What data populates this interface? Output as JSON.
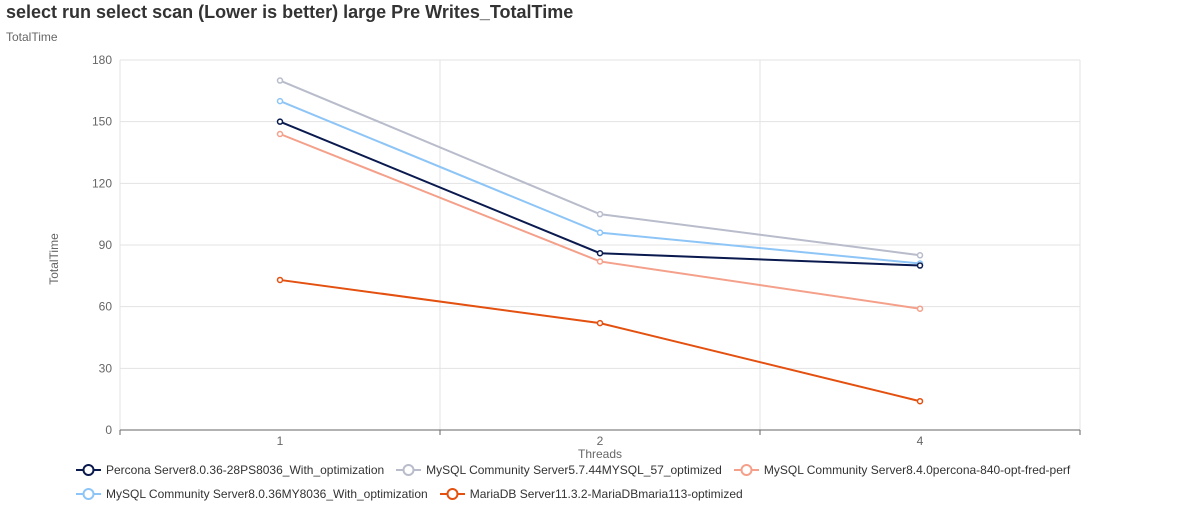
{
  "chart_data": {
    "type": "line",
    "title": "select run select scan (Lower is better)  large Pre Writes_TotalTime",
    "subtitle": "TotalTime",
    "xlabel": "Threads",
    "ylabel": "TotalTime",
    "categories": [
      "1",
      "2",
      "4"
    ],
    "ylim": [
      0,
      180
    ],
    "yticks": [
      0,
      30,
      60,
      90,
      120,
      150,
      180
    ],
    "grid": true,
    "legend_position": "bottom",
    "series": [
      {
        "name": "Percona Server8.0.36-28PS8036_With_optimization",
        "color": "#0a1a4e",
        "values": [
          150,
          86,
          80
        ]
      },
      {
        "name": "MySQL Community Server5.7.44MYSQL_57_optimized",
        "color": "#b8bccb",
        "values": [
          170,
          105,
          85
        ]
      },
      {
        "name": "MySQL Community Server8.4.0percona-840-opt-fred-perf",
        "color": "#f4a08a",
        "values": [
          144,
          82,
          59
        ]
      },
      {
        "name": "MySQL Community Server8.0.36MY8036_With_optimization",
        "color": "#8ec5f7",
        "values": [
          160,
          96,
          81
        ]
      },
      {
        "name": "MariaDB Server11.3.2-MariaDBmaria113-optimized",
        "color": "#e3500f",
        "values": [
          73,
          52,
          14
        ]
      }
    ]
  }
}
